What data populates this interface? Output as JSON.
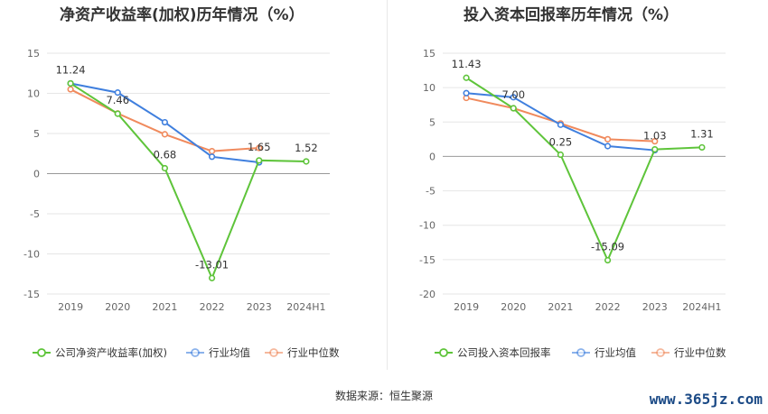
{
  "chart_data": [
    {
      "type": "line",
      "title": "净资产收益率(加权)历年情况（%）",
      "categories": [
        "2019",
        "2020",
        "2021",
        "2022",
        "2023",
        "2024H1"
      ],
      "y_ticks": [
        "15",
        "10",
        "5",
        "0",
        "-5",
        "-10",
        "-15"
      ],
      "ylim": [
        -15,
        15
      ],
      "series": [
        {
          "name": "公司净资产收益率(加权)",
          "color": "#5ec43a",
          "values": [
            11.24,
            7.46,
            0.68,
            -13.01,
            1.65,
            1.52
          ],
          "labels": [
            "11.24",
            "7.46",
            "0.68",
            "-13.01",
            "1.65",
            "1.52"
          ]
        },
        {
          "name": "行业均值",
          "color": "#3f7fde",
          "values": [
            11.24,
            10.1,
            6.4,
            2.1,
            1.4,
            null
          ]
        },
        {
          "name": "行业中位数",
          "color": "#f08a5d",
          "values": [
            10.5,
            7.5,
            4.9,
            2.8,
            3.2,
            null
          ]
        }
      ]
    },
    {
      "type": "line",
      "title": "投入资本回报率历年情况（%）",
      "categories": [
        "2019",
        "2020",
        "2021",
        "2022",
        "2023",
        "2024H1"
      ],
      "y_ticks": [
        "15",
        "10",
        "5",
        "0",
        "-5",
        "-10",
        "-15",
        "-20"
      ],
      "ylim": [
        -20,
        15
      ],
      "series": [
        {
          "name": "公司投入资本回报率",
          "color": "#5ec43a",
          "values": [
            11.43,
            7.0,
            0.25,
            -15.09,
            1.03,
            1.31
          ],
          "labels": [
            "11.43",
            "7.00",
            "0.25",
            "-15.09",
            "1.03",
            "1.31"
          ]
        },
        {
          "name": "行业均值",
          "color": "#3f7fde",
          "values": [
            9.2,
            8.6,
            4.6,
            1.5,
            0.9,
            null
          ]
        },
        {
          "name": "行业中位数",
          "color": "#f08a5d",
          "values": [
            8.5,
            7.0,
            4.8,
            2.5,
            2.2,
            null
          ]
        }
      ]
    }
  ],
  "source": "数据来源：恒生聚源",
  "watermark": "www.365jz.com"
}
